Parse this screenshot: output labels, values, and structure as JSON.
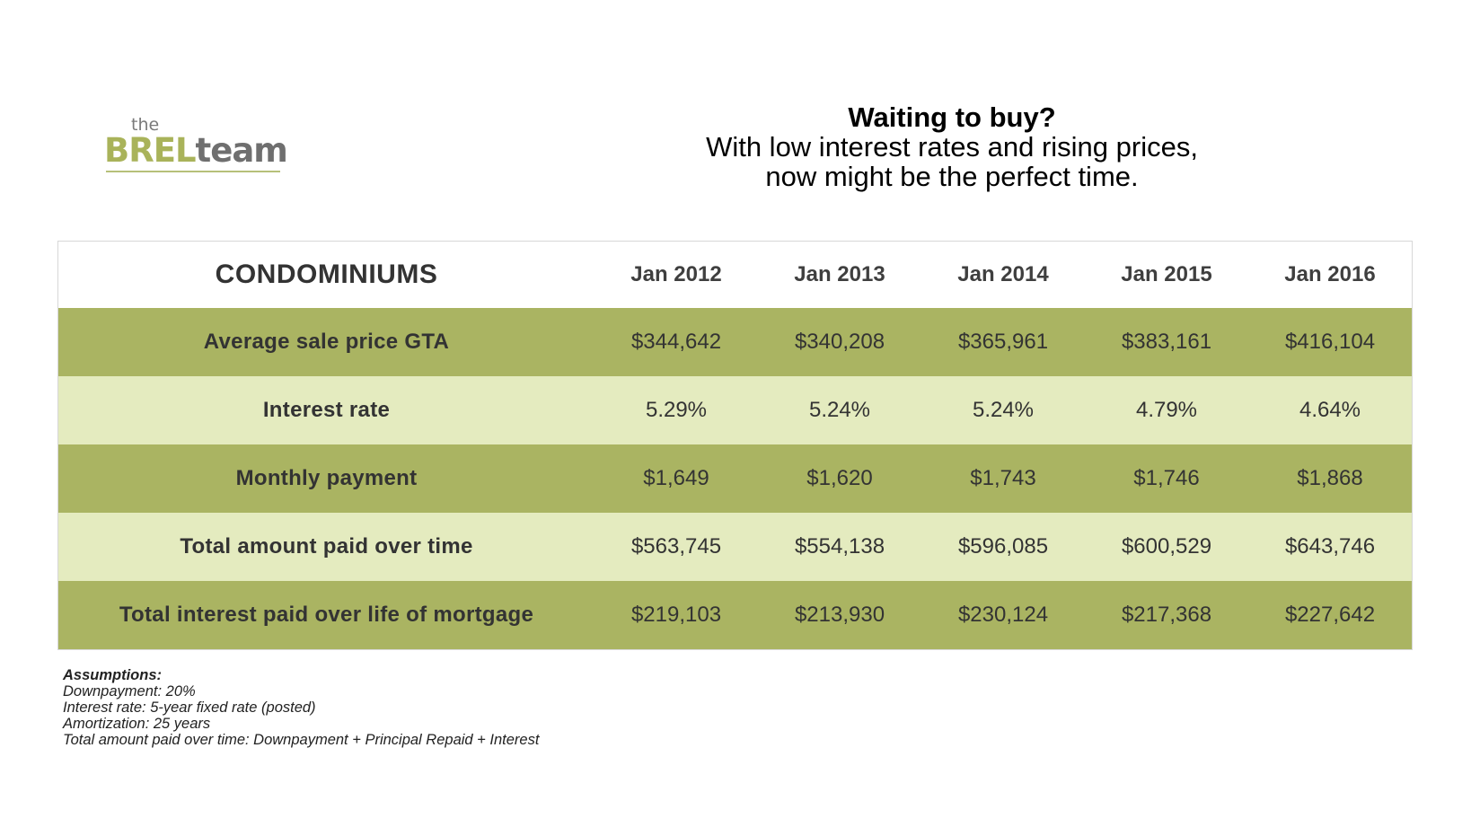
{
  "logo": {
    "the": "the",
    "brel": "BREL",
    "team": "team"
  },
  "headline": {
    "title": "Waiting to buy?",
    "line1": "With low interest rates and rising prices,",
    "line2": "now might be the perfect time."
  },
  "table": {
    "title": "CONDOMINIUMS",
    "years": [
      "Jan 2012",
      "Jan 2013",
      "Jan 2014",
      "Jan 2015",
      "Jan 2016"
    ],
    "rows": [
      {
        "label": "Average sale price GTA",
        "values": [
          "$344,642",
          "$340,208",
          "$365,961",
          "$383,161",
          "$416,104"
        ]
      },
      {
        "label": "Interest rate",
        "values": [
          "5.29%",
          "5.24%",
          "5.24%",
          "4.79%",
          "4.64%"
        ]
      },
      {
        "label": "Monthly payment",
        "values": [
          "$1,649",
          "$1,620",
          "$1,743",
          "$1,746",
          "$1,868"
        ]
      },
      {
        "label": "Total amount paid over time",
        "values": [
          "$563,745",
          "$554,138",
          "$596,085",
          "$600,529",
          "$643,746"
        ]
      },
      {
        "label": "Total interest paid over life of mortgage",
        "values": [
          "$219,103",
          "$213,930",
          "$230,124",
          "$217,368",
          "$227,642"
        ]
      }
    ]
  },
  "notes": {
    "heading": "Assumptions:",
    "lines": [
      "Downpayment: 20%",
      "Interest rate: 5-year fixed rate (posted)",
      "Amortization: 25 years",
      "Total amount paid over time: Downpayment + Principal Repaid + Interest"
    ]
  },
  "colors": {
    "dark_row": "#aab462",
    "light_row": "#e4ebbf",
    "brand_green": "#a9b35a"
  }
}
